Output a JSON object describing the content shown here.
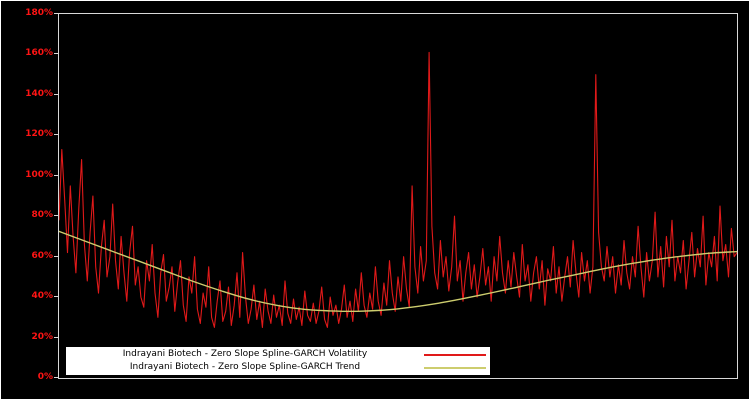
{
  "chart_data": {
    "type": "line",
    "title": "",
    "xlabel": "",
    "ylabel": "",
    "ylim": [
      0,
      180
    ],
    "grid": false,
    "legend_position": "lower-left-inside",
    "background": "#000000",
    "plot_border_color": "#d9d9d9",
    "axis_label_color": "#ff1414",
    "y_tick_values": [
      0,
      20,
      40,
      60,
      80,
      100,
      120,
      140,
      160,
      180
    ],
    "y_ticks": [
      "0%",
      "20%",
      "40%",
      "60%",
      "80%",
      "100%",
      "120%",
      "140%",
      "160%",
      "180%"
    ],
    "series": [
      {
        "name": "Indrayani Biotech - Zero Slope Spline-GARCH Volatility",
        "color": "#e01919",
        "stroke_width": 1.1,
        "values": [
          78,
          113,
          88,
          62,
          95,
          70,
          52,
          84,
          108,
          66,
          48,
          72,
          90,
          55,
          42,
          65,
          78,
          50,
          60,
          86,
          58,
          44,
          70,
          52,
          38,
          62,
          75,
          46,
          55,
          40,
          35,
          58,
          48,
          66,
          42,
          30,
          52,
          61,
          38,
          45,
          55,
          33,
          47,
          58,
          36,
          28,
          50,
          42,
          60,
          34,
          27,
          42,
          35,
          55,
          30,
          25,
          38,
          48,
          28,
          33,
          45,
          26,
          36,
          52,
          30,
          62,
          40,
          27,
          34,
          46,
          29,
          38,
          25,
          44,
          33,
          27,
          41,
          30,
          36,
          26,
          48,
          32,
          27,
          39,
          29,
          35,
          26,
          43,
          31,
          28,
          37,
          27,
          33,
          45,
          29,
          25,
          40,
          31,
          36,
          27,
          34,
          46,
          30,
          38,
          28,
          44,
          33,
          52,
          36,
          30,
          42,
          34,
          55,
          38,
          31,
          47,
          36,
          58,
          42,
          33,
          50,
          38,
          60,
          44,
          35,
          95,
          55,
          42,
          65,
          48,
          58,
          161,
          75,
          52,
          44,
          68,
          50,
          60,
          43,
          55,
          80,
          48,
          58,
          38,
          52,
          62,
          44,
          56,
          40,
          50,
          64,
          46,
          55,
          38,
          60,
          48,
          70,
          52,
          42,
          58,
          45,
          62,
          50,
          40,
          66,
          48,
          56,
          38,
          52,
          60,
          44,
          58,
          36,
          54,
          48,
          65,
          42,
          55,
          38,
          50,
          60,
          45,
          68,
          52,
          40,
          62,
          48,
          58,
          42,
          55,
          150,
          72,
          55,
          48,
          65,
          50,
          60,
          42,
          56,
          46,
          68,
          52,
          44,
          60,
          50,
          75,
          55,
          40,
          62,
          48,
          58,
          82,
          50,
          65,
          45,
          70,
          55,
          78,
          48,
          60,
          52,
          68,
          44,
          58,
          72,
          50,
          64,
          55,
          80,
          46,
          62,
          55,
          70,
          48,
          85,
          58,
          66,
          50,
          74,
          60,
          62
        ]
      },
      {
        "name": "Indrayani Biotech - Zero Slope Spline-GARCH Trend",
        "color": "#cdcd6e",
        "stroke_width": 1.4,
        "values": [
          72.5,
          67.5,
          62.5,
          57.5,
          52.5,
          47.5,
          43,
          39,
          36,
          34,
          33.2,
          33,
          33.6,
          35,
          37,
          39.5,
          42.3,
          45.2,
          48.2,
          51,
          53.8,
          56.3,
          58.5,
          60.3,
          61.7,
          62.5
        ]
      }
    ]
  }
}
